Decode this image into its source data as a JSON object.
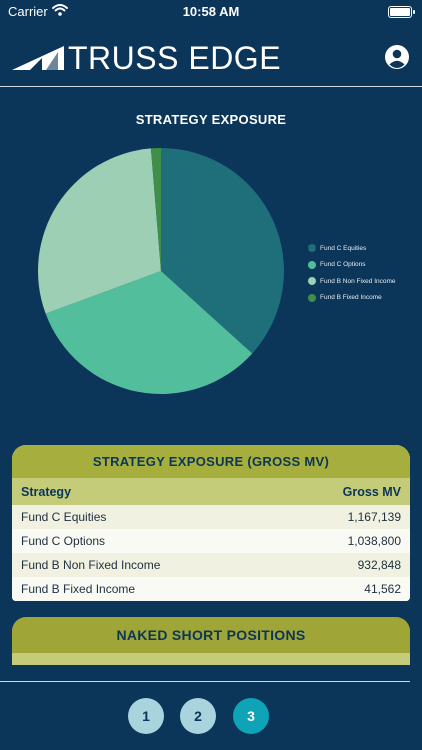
{
  "status_bar": {
    "carrier": "Carrier",
    "time": "10:58 AM"
  },
  "header": {
    "logo_text": "TRUSS EDGE"
  },
  "chart_data": {
    "type": "pie",
    "title": "STRATEGY EXPOSURE",
    "categories": [
      "Fund C Equities",
      "Fund C Options",
      "Fund B Non Fixed Income",
      "Fund B Fixed Income"
    ],
    "values": [
      1167139,
      1038800,
      932848,
      41562
    ],
    "colors": [
      "#1e6f7a",
      "#52be9b",
      "#9ccfb4",
      "#3f8e4a"
    ],
    "legend_position": "right"
  },
  "exposure_table": {
    "title": "STRATEGY EXPOSURE (GROSS MV)",
    "columns": [
      "Strategy",
      "Gross MV"
    ],
    "rows": [
      {
        "strategy": "Fund C Equities",
        "gross_mv": "1,167,139"
      },
      {
        "strategy": "Fund C Options",
        "gross_mv": "1,038,800"
      },
      {
        "strategy": "Fund B Non Fixed Income",
        "gross_mv": "932,848"
      },
      {
        "strategy": "Fund B Fixed Income",
        "gross_mv": "41,562"
      }
    ]
  },
  "naked_short": {
    "title": "NAKED SHORT POSITIONS"
  },
  "pager": {
    "pages": [
      "1",
      "2",
      "3"
    ],
    "active": "3"
  },
  "icons": [
    "wifi-icon",
    "battery-icon",
    "truss-logo-icon",
    "profile-icon"
  ]
}
